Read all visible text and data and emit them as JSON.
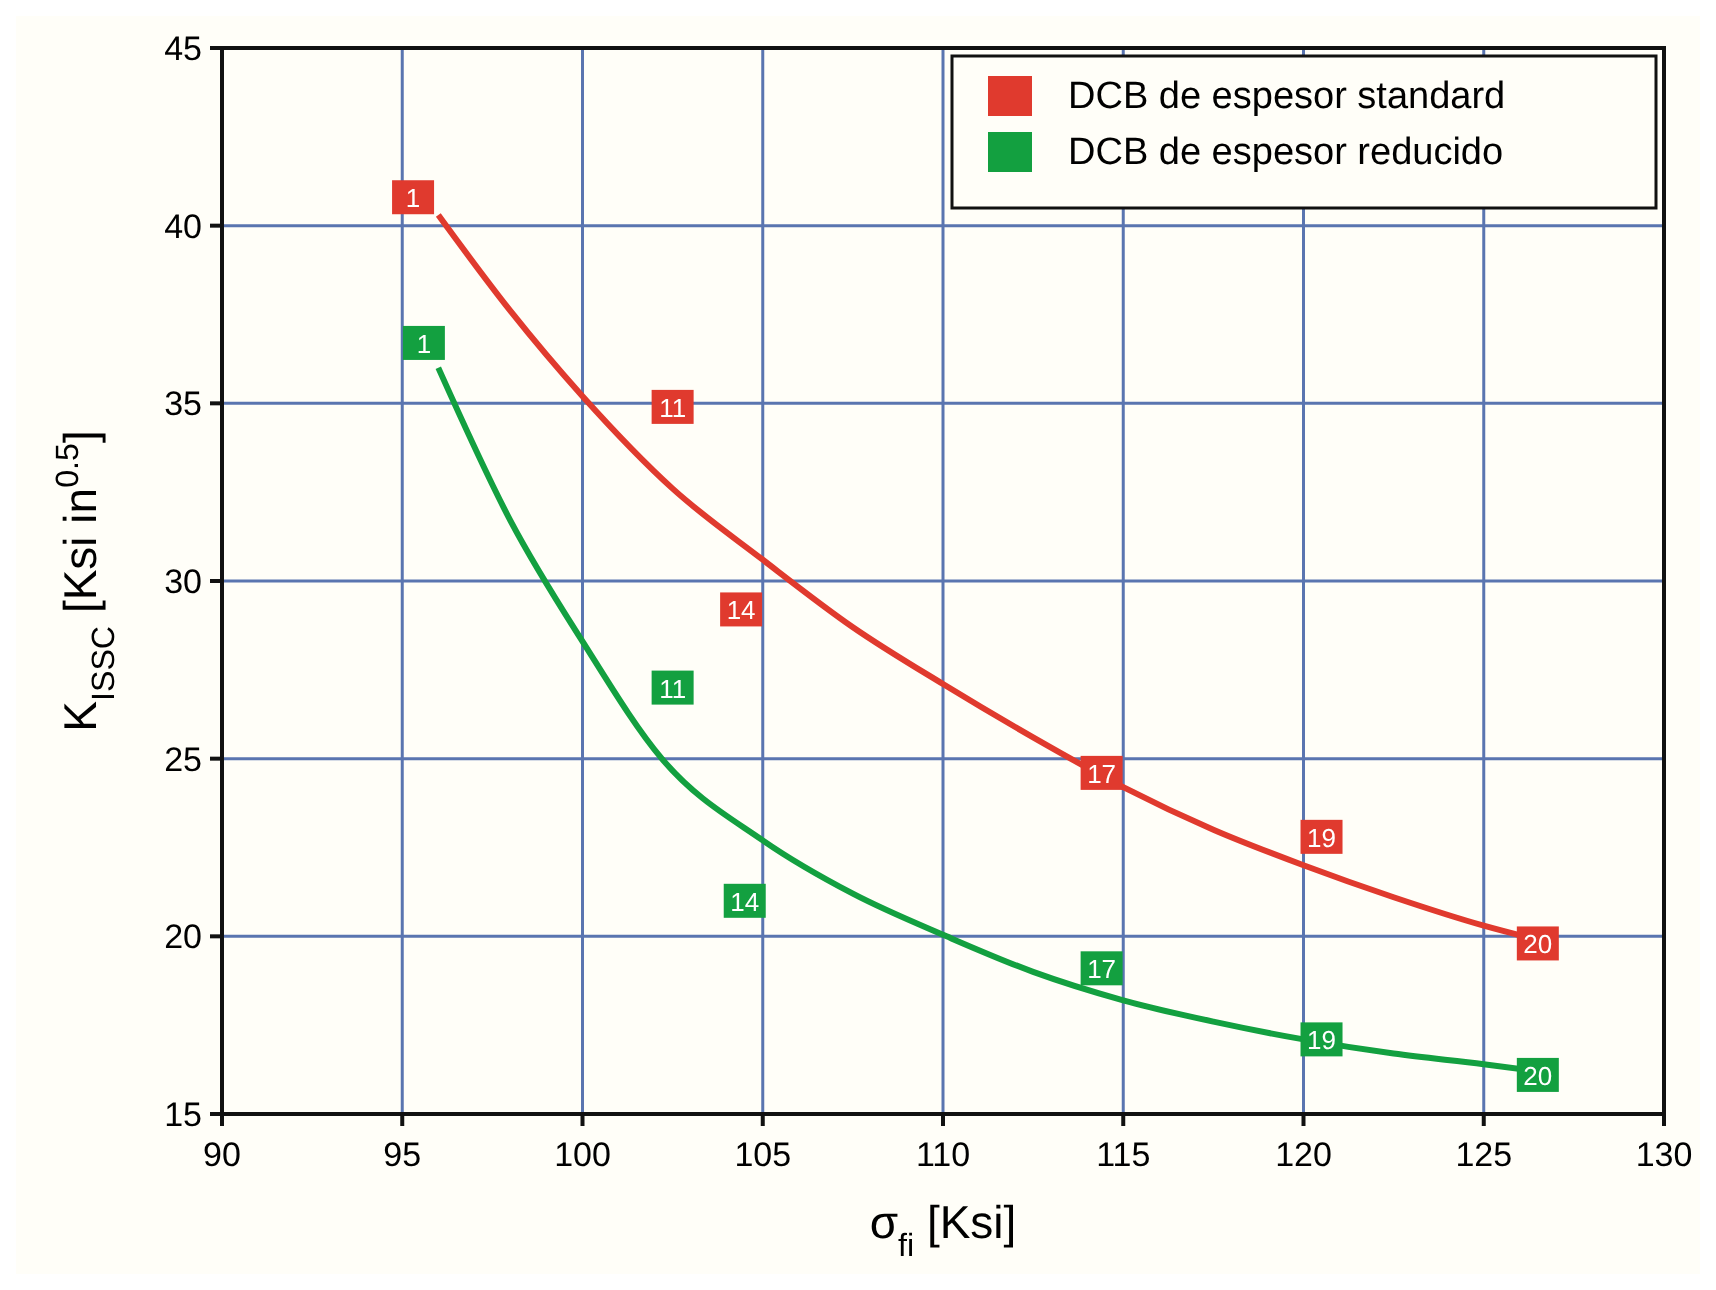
{
  "chart_data": {
    "type": "scatter",
    "xlabel": "σ$_{fi}$ [Ksi]",
    "ylabel": "K$_{ISSC}$  [Ksi in$^{0.5}$]",
    "xlim": [
      90,
      130
    ],
    "ylim": [
      15,
      45
    ],
    "xticks": [
      90,
      95,
      100,
      105,
      110,
      115,
      120,
      125,
      130
    ],
    "yticks": [
      15,
      20,
      25,
      30,
      35,
      40,
      45
    ],
    "grid": true,
    "legend": "top right",
    "marker": "square",
    "series": [
      {
        "name": "DCB de espesor standard",
        "color": "#e03a2e",
        "x": [
          95.3,
          102.5,
          104.4,
          114.4,
          120.5,
          126.5
        ],
        "values": [
          40.8,
          34.9,
          29.2,
          24.6,
          22.8,
          19.8
        ]
      },
      {
        "name": "DCB de espesor reducido",
        "color": "#13a040",
        "x": [
          95.6,
          102.5,
          104.5,
          114.4,
          120.5,
          126.5
        ],
        "values": [
          36.7,
          27.0,
          21.0,
          19.1,
          17.1,
          16.1
        ]
      },
      {
        "type": "line",
        "color": "#e03a2e",
        "marker": "none",
        "x": [
          96,
          98,
          100,
          102.5,
          105,
          107.5,
          110,
          112.5,
          115,
          117.5,
          120,
          122.5,
          125,
          126.5
        ],
        "values": [
          40.3,
          37.6,
          35.2,
          32.6,
          30.6,
          28.7,
          27.1,
          25.6,
          24.2,
          23.0,
          22.0,
          21.1,
          20.3,
          19.9
        ]
      },
      {
        "type": "line",
        "color": "#13a040",
        "marker": "none",
        "x": [
          96,
          98,
          100,
          102.2,
          105,
          107.5,
          110.1,
          112.5,
          115,
          117.5,
          120,
          122.5,
          125,
          126.5
        ],
        "values": [
          36.0,
          31.7,
          28.3,
          25.0,
          22.7,
          21.2,
          20.0,
          19.0,
          18.2,
          17.6,
          17.1,
          16.7,
          16.4,
          16.2
        ]
      }
    ],
    "annotations": [
      {
        "text": "1",
        "x": 95.3,
        "y": 40.8
      },
      {
        "text": "11",
        "x": 102.5,
        "y": 34.9
      },
      {
        "text": "14",
        "x": 104.4,
        "y": 29.2
      },
      {
        "text": "17",
        "x": 114.4,
        "y": 24.6
      },
      {
        "text": "19",
        "x": 120.5,
        "y": 22.8
      },
      {
        "text": "20",
        "x": 126.5,
        "y": 19.8
      },
      {
        "text": "1",
        "x": 95.6,
        "y": 36.7
      },
      {
        "text": "11",
        "x": 102.5,
        "y": 27.0
      },
      {
        "text": "14",
        "x": 104.5,
        "y": 21.0
      },
      {
        "text": "17",
        "x": 114.4,
        "y": 19.1
      },
      {
        "text": "19",
        "x": 120.5,
        "y": 17.1
      },
      {
        "text": "20",
        "x": 126.5,
        "y": 16.1
      }
    ]
  }
}
